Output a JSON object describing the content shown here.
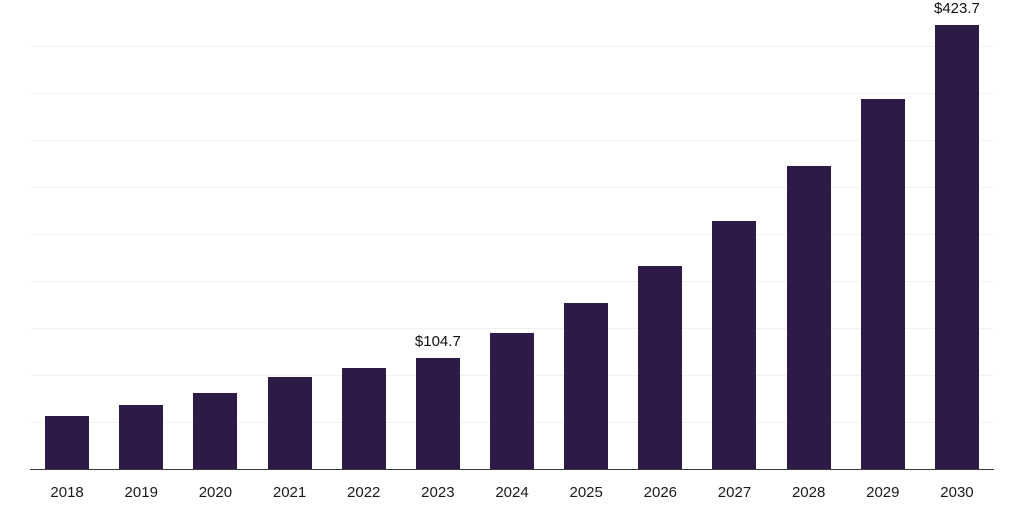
{
  "chart_data": {
    "type": "bar",
    "title": "",
    "xlabel": "",
    "ylabel": "",
    "categories": [
      "2018",
      "2019",
      "2020",
      "2021",
      "2022",
      "2023",
      "2024",
      "2025",
      "2026",
      "2027",
      "2028",
      "2029",
      "2030"
    ],
    "values": [
      50.8,
      61.0,
      71.9,
      87.2,
      95.9,
      104.7,
      127.8,
      156.1,
      190.6,
      232.7,
      284.2,
      347.0,
      423.7
    ],
    "data_labels": [
      "",
      "",
      "",
      "",
      "",
      "$104.7",
      "",
      "",
      "",
      "",
      "",
      "",
      "$423.7"
    ],
    "ylim": [
      0,
      440
    ],
    "grid": "horizontal",
    "gridline_count": 9,
    "legend_position": "none",
    "colors": {
      "bar": "#2e1a47",
      "gridline": "#f2f2f2",
      "axis_line": "#3b3b3b",
      "label_text": "#1a1a1a",
      "value_text": "#111111",
      "background": "#ffffff"
    }
  }
}
